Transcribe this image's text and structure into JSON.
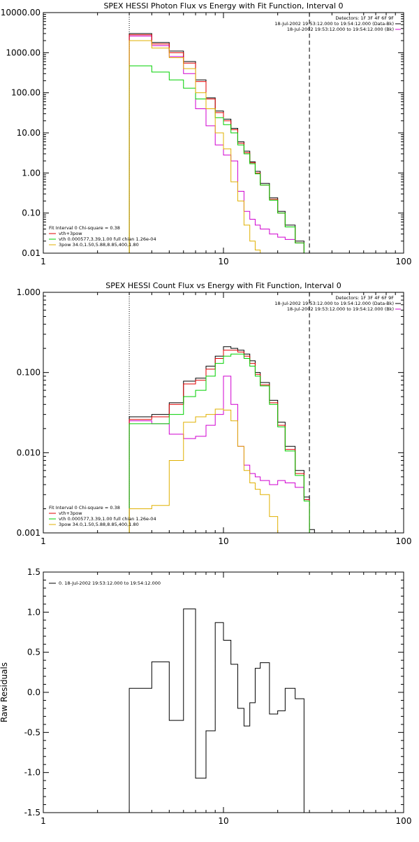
{
  "chart_data": [
    {
      "type": "line",
      "step": true,
      "title": "SPEX HESSI Photon Flux vs Energy with Fit Function, Interval 0",
      "xscale": "log",
      "yscale": "log",
      "xlim": [
        1,
        100
      ],
      "ylim": [
        0.01,
        10000
      ],
      "xticks": [
        1,
        10,
        100
      ],
      "xtick_labels": [
        "1",
        "10",
        "100"
      ],
      "yticks": [
        0.01,
        0.1,
        1,
        10,
        100,
        1000,
        10000
      ],
      "ytick_labels": [
        "0.01",
        "0.10",
        "1.00",
        "10.00",
        "100.00",
        "1000.00",
        "10000.00"
      ],
      "vlines": [
        {
          "x": 3,
          "style": "dotted",
          "color": "#000000"
        },
        {
          "x": 30,
          "style": "dashed",
          "color": "#000000"
        }
      ],
      "header": [
        "Detectors: 1F 3F 4F 6F 9F",
        "18-Jul-2002 19:53:12.000 to 19:54:12.000 (Data-Bk)",
        "18-Jul-2002 19:53:12.000 to 19:54:12.000 (Bk)"
      ],
      "legend_lines": [
        {
          "text": "Fit Interval 0   Chi-square = 0.38",
          "color": null
        },
        {
          "text": "vth+3pow",
          "color": "#e00000"
        },
        {
          "text": "vth 0.000577,3.39,1.00   full chian 1.26e-04",
          "color": "#00d000"
        },
        {
          "text": "3pow 34.0,1.50,5.88,8.85,400,1.80",
          "color": "#e0b000"
        }
      ],
      "edges": [
        3,
        4,
        5,
        6,
        7,
        8,
        9,
        10,
        11,
        12,
        13,
        14,
        15,
        16,
        18,
        20,
        22,
        25,
        28,
        30
      ],
      "series": [
        {
          "name": "Data-Bk",
          "color": "#000000",
          "values": [
            3000,
            1800,
            1100,
            600,
            210,
            75,
            35,
            22,
            13,
            6,
            3.5,
            1.9,
            1.1,
            0.55,
            0.24,
            0.11,
            0.05,
            0.02,
            0.0085
          ]
        },
        {
          "name": "Bk",
          "color": "#d000d0",
          "values": [
            2600,
            1500,
            800,
            300,
            40,
            15,
            5,
            2.8,
            2,
            0.35,
            0.11,
            0.07,
            0.05,
            0.04,
            0.03,
            0.025,
            0.022,
            0.018,
            0.009
          ]
        },
        {
          "name": "vth+3pow",
          "color": "#e00000",
          "values": [
            2800,
            1650,
            1000,
            550,
            190,
            70,
            32,
            20,
            12,
            5.5,
            3.2,
            1.8,
            1.0,
            0.5,
            0.22,
            0.1,
            0.045,
            0.018
          ]
        },
        {
          "name": "vth",
          "color": "#00d000",
          "values": [
            470,
            330,
            210,
            130,
            70,
            40,
            24,
            16,
            10,
            5,
            3,
            1.7,
            0.95,
            0.5,
            0.21,
            0.1,
            0.045,
            0.018
          ]
        },
        {
          "name": "3pow",
          "color": "#e0b000",
          "values": [
            2000,
            1300,
            750,
            400,
            100,
            40,
            10,
            4,
            0.6,
            0.2,
            0.05,
            0.02,
            0.012,
            0.008
          ]
        }
      ]
    },
    {
      "type": "line",
      "step": true,
      "title": "SPEX HESSI Count Flux vs Energy with Fit Function, Interval 0",
      "xscale": "log",
      "yscale": "log",
      "xlim": [
        1,
        100
      ],
      "ylim": [
        0.001,
        1
      ],
      "xticks": [
        1,
        10,
        100
      ],
      "xtick_labels": [
        "1",
        "10",
        "100"
      ],
      "yticks": [
        0.001,
        0.01,
        0.1,
        1
      ],
      "ytick_labels": [
        "0.001",
        "0.010",
        "0.100",
        "1.000"
      ],
      "vlines": [
        {
          "x": 3,
          "style": "dotted",
          "color": "#000000"
        },
        {
          "x": 30,
          "style": "dashed",
          "color": "#000000"
        }
      ],
      "header": [
        "Detectors: 1F 3F 4F 6F 9F",
        "18-Jul-2002 19:53:12.000 to 19:54:12.000 (Data-Bk)",
        "18-Jul-2002 19:53:12.000 to 19:54:12.000 (Bk)"
      ],
      "legend_lines": [
        {
          "text": "Fit Interval 0   Chi-square = 0.38",
          "color": null
        },
        {
          "text": "vth+3pow",
          "color": "#e00000"
        },
        {
          "text": "vth 0.000577,3.39,1.00   full chian 1.26e-04",
          "color": "#00d000"
        },
        {
          "text": "3pow 34.0,1.50,5.88,8.85,400,1.80",
          "color": "#e0b000"
        }
      ],
      "edges": [
        3,
        4,
        5,
        6,
        7,
        8,
        9,
        10,
        11,
        12,
        13,
        14,
        15,
        16,
        18,
        20,
        22,
        25,
        28,
        30,
        32
      ],
      "series": [
        {
          "name": "Data-Bk",
          "color": "#000000",
          "values": [
            0.028,
            0.03,
            0.042,
            0.078,
            0.085,
            0.12,
            0.16,
            0.21,
            0.2,
            0.19,
            0.17,
            0.14,
            0.1,
            0.075,
            0.045,
            0.024,
            0.012,
            0.006,
            0.0028,
            0.0011
          ]
        },
        {
          "name": "Bk",
          "color": "#d000d0",
          "values": [
            0.025,
            0.023,
            0.017,
            0.015,
            0.016,
            0.022,
            0.03,
            0.09,
            0.04,
            0.012,
            0.007,
            0.0055,
            0.005,
            0.0045,
            0.004,
            0.0045,
            0.0042,
            0.0037,
            0.0026
          ]
        },
        {
          "name": "vth+3pow",
          "color": "#e00000",
          "values": [
            0.026,
            0.028,
            0.04,
            0.072,
            0.08,
            0.11,
            0.15,
            0.19,
            0.19,
            0.18,
            0.16,
            0.13,
            0.095,
            0.07,
            0.042,
            0.022,
            0.011,
            0.0055,
            0.0026
          ]
        },
        {
          "name": "vth",
          "color": "#00d000",
          "values": [
            0.023,
            0.023,
            0.03,
            0.05,
            0.06,
            0.09,
            0.13,
            0.16,
            0.17,
            0.17,
            0.15,
            0.12,
            0.09,
            0.068,
            0.04,
            0.021,
            0.0105,
            0.0052,
            0.0025
          ]
        },
        {
          "name": "3pow",
          "color": "#e0b000",
          "values": [
            0.002,
            0.0022,
            0.008,
            0.024,
            0.028,
            0.03,
            0.035,
            0.034,
            0.025,
            0.012,
            0.006,
            0.0042,
            0.0035,
            0.003,
            0.0016,
            0.0009
          ]
        }
      ]
    },
    {
      "type": "line",
      "step": true,
      "title": "",
      "ylabel": "Raw Residuals",
      "xscale": "log",
      "yscale": "linear",
      "xlim": [
        1,
        100
      ],
      "ylim": [
        -1.5,
        1.5
      ],
      "xticks": [
        1,
        10,
        100
      ],
      "xtick_labels": [
        "1",
        "10",
        "100"
      ],
      "yticks": [
        -1.5,
        -1.0,
        -0.5,
        0.0,
        0.5,
        1.0,
        1.5
      ],
      "ytick_labels": [
        "-1.5",
        "-1.0",
        "-0.5",
        "0.0",
        "0.5",
        "1.0",
        "1.5"
      ],
      "legend_lines": [
        {
          "text": "0. 18-Jul-2002 19:53:12.000 to 19:54:12.000",
          "color": "#000000"
        }
      ],
      "edges": [
        3,
        4,
        5,
        6,
        7,
        8,
        9,
        10,
        11,
        12,
        13,
        14,
        15,
        16,
        18,
        20,
        22,
        25,
        28,
        30
      ],
      "series": [
        {
          "name": "0. 18-Jul-2002 19:53:12.000 to 19:54:12.000",
          "color": "#000000",
          "values": [
            0.05,
            0.38,
            -0.35,
            1.04,
            -1.07,
            -0.48,
            0.87,
            0.65,
            0.35,
            -0.2,
            -0.42,
            -0.13,
            0.3,
            0.37,
            -0.27,
            -0.23,
            0.05,
            -0.08,
            -1.5
          ]
        }
      ]
    }
  ]
}
